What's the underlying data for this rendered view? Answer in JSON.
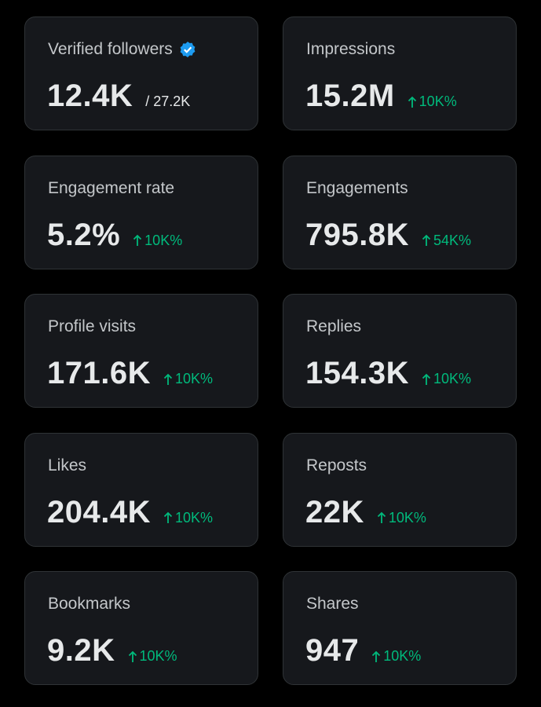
{
  "cards": [
    {
      "label": "Verified followers",
      "verified": true,
      "value": "12.4K",
      "total": "/ 27.2K"
    },
    {
      "label": "Impressions",
      "value": "15.2M",
      "delta": "10K%"
    },
    {
      "label": "Engagement rate",
      "value": "5.2%",
      "delta": "10K%"
    },
    {
      "label": "Engagements",
      "value": "795.8K",
      "delta": "54K%"
    },
    {
      "label": "Profile visits",
      "value": "171.6K",
      "delta": "10K%"
    },
    {
      "label": "Replies",
      "value": "154.3K",
      "delta": "10K%"
    },
    {
      "label": "Likes",
      "value": "204.4K",
      "delta": "10K%"
    },
    {
      "label": "Reposts",
      "value": "22K",
      "delta": "10K%"
    },
    {
      "label": "Bookmarks",
      "value": "9.2K",
      "delta": "10K%"
    },
    {
      "label": "Shares",
      "value": "947",
      "delta": "10K%"
    }
  ]
}
